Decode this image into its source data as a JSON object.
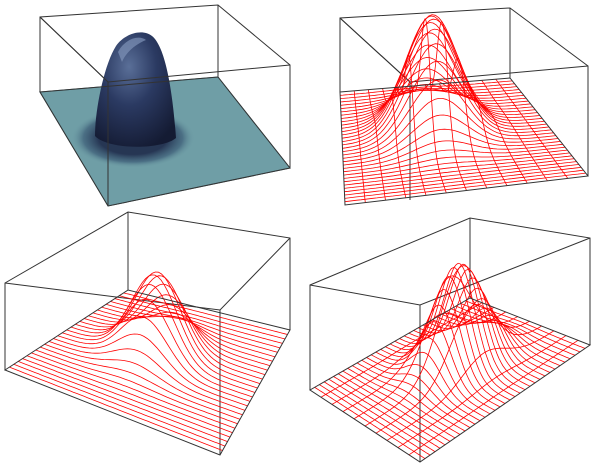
{
  "figure": {
    "panels": [
      {
        "rendering": "shaded-surface",
        "surface_color": "#6f9ea6",
        "peak_color": "#1f2b4a"
      },
      {
        "rendering": "wireframe-lines",
        "line_color": "#ff0000"
      },
      {
        "rendering": "wireframe-lines",
        "line_color": "#ff0000"
      },
      {
        "rendering": "wireframe-lines",
        "line_color": "#ff0000"
      }
    ],
    "box_color": "#333333"
  }
}
